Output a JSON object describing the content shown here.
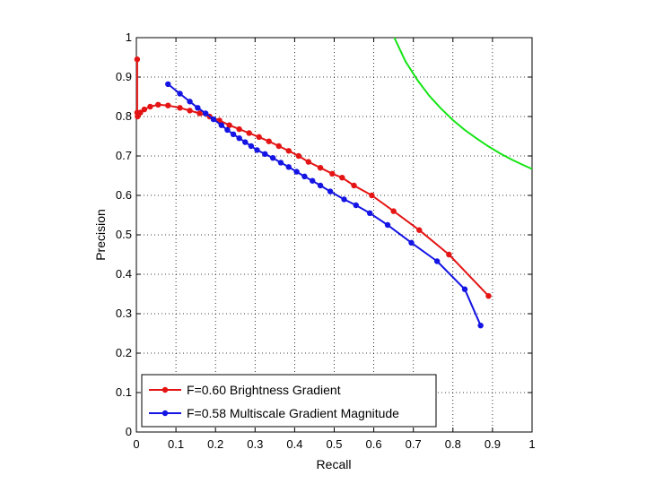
{
  "chart_data": {
    "type": "line",
    "xlabel": "Recall",
    "ylabel": "Precision",
    "xlim": [
      0,
      1
    ],
    "ylim": [
      0,
      1
    ],
    "xticks": [
      "0",
      "0.1",
      "0.2",
      "0.3",
      "0.4",
      "0.5",
      "0.6",
      "0.7",
      "0.8",
      "0.9",
      "1"
    ],
    "yticks": [
      "0",
      "0.1",
      "0.2",
      "0.3",
      "0.4",
      "0.5",
      "0.6",
      "0.7",
      "0.8",
      "0.9",
      "1"
    ],
    "grid": true,
    "legend_position": "bottom-left",
    "series": [
      {
        "name": "F=0.60 Brightness Gradient",
        "color": "#e41414",
        "markers": true,
        "x": [
          0.002,
          0.002,
          0.003,
          0.005,
          0.01,
          0.02,
          0.035,
          0.055,
          0.08,
          0.11,
          0.135,
          0.16,
          0.185,
          0.21,
          0.235,
          0.26,
          0.285,
          0.31,
          0.335,
          0.36,
          0.385,
          0.41,
          0.435,
          0.465,
          0.495,
          0.52,
          0.55,
          0.595,
          0.65,
          0.715,
          0.79,
          0.89
        ],
        "y": [
          0.945,
          0.81,
          0.8,
          0.805,
          0.81,
          0.818,
          0.825,
          0.83,
          0.828,
          0.822,
          0.815,
          0.808,
          0.8,
          0.79,
          0.778,
          0.768,
          0.758,
          0.748,
          0.737,
          0.725,
          0.713,
          0.7,
          0.685,
          0.67,
          0.655,
          0.645,
          0.625,
          0.6,
          0.56,
          0.512,
          0.45,
          0.345
        ]
      },
      {
        "name": "F=0.58 Multiscale Gradient Magnitude",
        "color": "#1414e4",
        "markers": true,
        "x": [
          0.08,
          0.11,
          0.135,
          0.155,
          0.175,
          0.195,
          0.215,
          0.23,
          0.245,
          0.26,
          0.275,
          0.29,
          0.305,
          0.325,
          0.345,
          0.365,
          0.385,
          0.405,
          0.425,
          0.445,
          0.465,
          0.49,
          0.525,
          0.555,
          0.59,
          0.635,
          0.695,
          0.76,
          0.83,
          0.87
        ],
        "y": [
          0.882,
          0.858,
          0.838,
          0.822,
          0.808,
          0.793,
          0.778,
          0.766,
          0.755,
          0.745,
          0.735,
          0.725,
          0.715,
          0.705,
          0.695,
          0.683,
          0.672,
          0.66,
          0.648,
          0.637,
          0.625,
          0.61,
          0.59,
          0.575,
          0.555,
          0.525,
          0.48,
          0.433,
          0.362,
          0.27
        ]
      },
      {
        "name": "",
        "color": "#14e414",
        "markers": false,
        "x": [
          0.652,
          0.68,
          0.71,
          0.74,
          0.77,
          0.8,
          0.83,
          0.86,
          0.89,
          0.92,
          0.95,
          0.98,
          1.0
        ],
        "y": [
          1.0,
          0.94,
          0.893,
          0.853,
          0.82,
          0.791,
          0.766,
          0.744,
          0.724,
          0.706,
          0.69,
          0.676,
          0.667
        ]
      }
    ]
  }
}
